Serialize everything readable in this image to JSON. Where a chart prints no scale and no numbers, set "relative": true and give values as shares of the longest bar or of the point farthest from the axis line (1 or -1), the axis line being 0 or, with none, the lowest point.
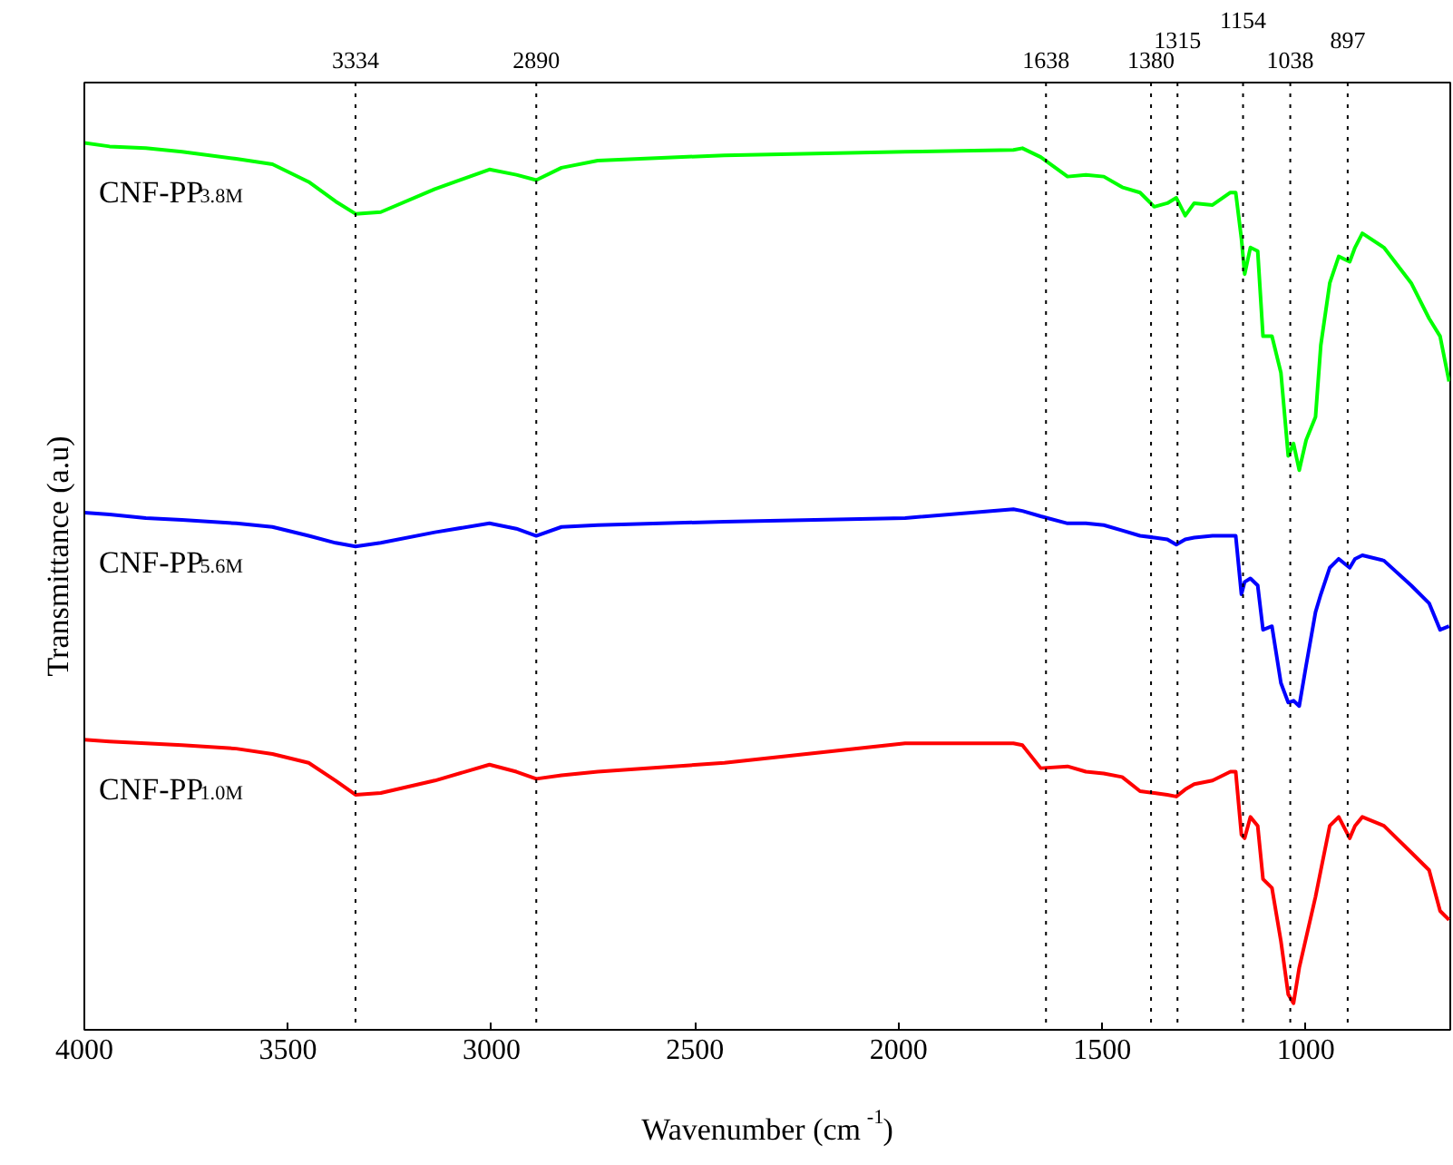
{
  "chart_data": {
    "type": "line",
    "xlabel": "Wavenumber (cm$^{-1}$)",
    "ylabel": "Transmittance (a.u)",
    "relative": true,
    "tick_labels": "x",
    "line_style": "solid",
    "xlim": [
      4000,
      645
    ],
    "xticks": [
      4000,
      3500,
      3000,
      2500,
      2000,
      1500,
      1000
    ],
    "x": [
      4000,
      3938,
      3849,
      3760,
      3627,
      3538,
      3449,
      3383,
      3334,
      3272,
      3139,
      3005,
      2939,
      2890,
      2828,
      2739,
      2428,
      1984,
      1718,
      1696,
      1651,
      1585,
      1540,
      1496,
      1451,
      1407,
      1372,
      1340,
      1318,
      1296,
      1274,
      1229,
      1185,
      1172,
      1158,
      1150,
      1136,
      1118,
      1105,
      1083,
      1061,
      1043,
      1030,
      1016,
      999,
      976,
      963,
      941,
      919,
      892,
      879,
      861,
      808,
      741,
      697,
      670,
      648
    ],
    "series": [
      {
        "name": "CNF-PP$_{3.8M}$",
        "color": "#00ff00",
        "values": [
          1.0,
          0.996,
          0.994,
          0.99,
          0.982,
          0.976,
          0.956,
          0.934,
          0.92,
          0.922,
          0.948,
          0.97,
          0.964,
          0.958,
          0.972,
          0.98,
          0.986,
          0.99,
          0.992,
          0.994,
          0.984,
          0.962,
          0.964,
          0.962,
          0.95,
          0.944,
          0.928,
          0.932,
          0.938,
          0.918,
          0.932,
          0.93,
          0.944,
          0.944,
          0.892,
          0.852,
          0.882,
          0.878,
          0.782,
          0.782,
          0.741,
          0.647,
          0.661,
          0.631,
          0.665,
          0.691,
          0.772,
          0.842,
          0.872,
          0.866,
          0.882,
          0.898,
          0.882,
          0.842,
          0.802,
          0.782,
          0.731
        ]
      },
      {
        "name": "CNF-PP$_{5.6M}$",
        "color": "#0000ff",
        "values": [
          0.583,
          0.581,
          0.577,
          0.575,
          0.571,
          0.567,
          0.557,
          0.549,
          0.545,
          0.549,
          0.561,
          0.571,
          0.565,
          0.557,
          0.567,
          0.569,
          0.573,
          0.577,
          0.587,
          0.585,
          0.579,
          0.571,
          0.571,
          0.569,
          0.563,
          0.557,
          0.555,
          0.553,
          0.547,
          0.553,
          0.555,
          0.557,
          0.557,
          0.557,
          0.491,
          0.505,
          0.509,
          0.501,
          0.451,
          0.455,
          0.391,
          0.369,
          0.371,
          0.365,
          0.411,
          0.471,
          0.491,
          0.521,
          0.531,
          0.521,
          0.531,
          0.535,
          0.529,
          0.501,
          0.481,
          0.451,
          0.455
        ]
      },
      {
        "name": "CNF-PP$_{1.0M}$",
        "color": "#ff0000",
        "values": [
          0.327,
          0.325,
          0.323,
          0.321,
          0.317,
          0.311,
          0.301,
          0.281,
          0.265,
          0.267,
          0.281,
          0.299,
          0.291,
          0.283,
          0.287,
          0.291,
          0.301,
          0.323,
          0.323,
          0.321,
          0.295,
          0.297,
          0.291,
          0.289,
          0.285,
          0.269,
          0.267,
          0.265,
          0.263,
          0.271,
          0.277,
          0.281,
          0.291,
          0.291,
          0.22,
          0.216,
          0.24,
          0.23,
          0.17,
          0.16,
          0.1,
          0.04,
          0.03,
          0.07,
          0.104,
          0.15,
          0.18,
          0.23,
          0.24,
          0.216,
          0.23,
          0.24,
          0.23,
          0.2,
          0.18,
          0.134,
          0.124
        ]
      }
    ],
    "ref_lines": [
      {
        "axis": "x",
        "value": 3334,
        "label": "3334",
        "color": "#000000",
        "line_style": "dotted"
      },
      {
        "axis": "x",
        "value": 2890,
        "label": "2890",
        "color": "#000000",
        "line_style": "dotted"
      },
      {
        "axis": "x",
        "value": 1638,
        "label": "1638",
        "color": "#000000",
        "line_style": "dotted"
      },
      {
        "axis": "x",
        "value": 1380,
        "label": "1380",
        "color": "#000000",
        "line_style": "dotted"
      },
      {
        "axis": "x",
        "value": 1315,
        "label": "1315",
        "color": "#000000",
        "line_style": "dotted"
      },
      {
        "axis": "x",
        "value": 1154,
        "label": "1154",
        "color": "#000000",
        "line_style": "dotted"
      },
      {
        "axis": "x",
        "value": 1038,
        "label": "1038",
        "color": "#000000",
        "line_style": "dotted"
      },
      {
        "axis": "x",
        "value": 897,
        "label": "897",
        "color": "#000000",
        "line_style": "dotted"
      }
    ]
  }
}
